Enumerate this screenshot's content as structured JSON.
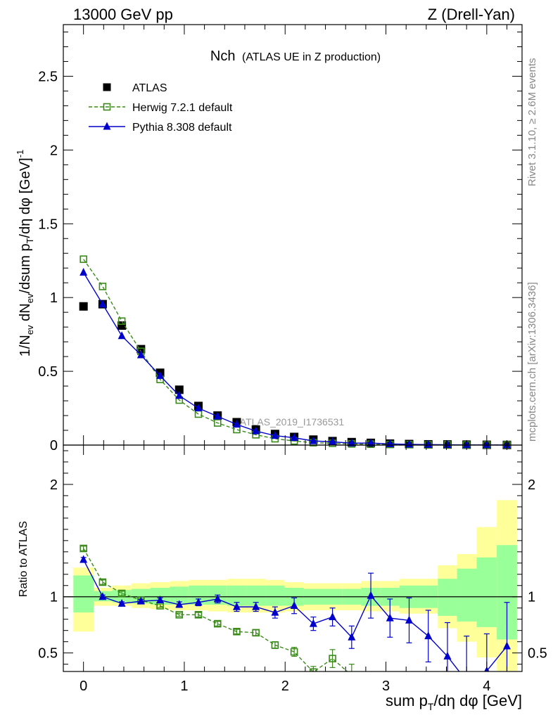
{
  "header": {
    "left": "13000 GeV pp",
    "right": "Z (Drell-Yan)"
  },
  "side_labels": {
    "rivet": "Rivet 3.1.10, ≥ 2.6M events",
    "source": "mcplots.cern.ch [arXiv:1306.3436]"
  },
  "colors": {
    "atlas": "#000000",
    "herwig": "#3a8a1a",
    "pythia": "#0000cc",
    "band_inner": "#99ff99",
    "band_outer": "#ffff99"
  },
  "chart_data": [
    {
      "type": "scatter",
      "panel": "main",
      "title_main": "Nch",
      "title_sub": "(ATLAS UE in Z production)",
      "watermark": "ATLAS_2019_I1736531",
      "ylabel": "1/N_ev dN_ev/dsum p_T/dη dφ [GeV]^-1",
      "xlim": [
        -0.2,
        4.35
      ],
      "ylim": [
        0,
        2.85
      ],
      "yticks": [
        0,
        0.5,
        1,
        1.5,
        2,
        2.5
      ],
      "ytick_labels": [
        "0",
        "0.5",
        "1",
        "1.5",
        "2",
        "2.5"
      ],
      "legend_position": "top-left",
      "x": [
        0.0,
        0.19,
        0.38,
        0.57,
        0.76,
        0.95,
        1.14,
        1.33,
        1.52,
        1.71,
        1.9,
        2.09,
        2.28,
        2.47,
        2.66,
        2.85,
        3.04,
        3.23,
        3.42,
        3.61,
        3.8,
        4.0,
        4.2
      ],
      "series": [
        {
          "name": "ATLAS",
          "marker": "square",
          "values": [
            0.94,
            0.955,
            0.81,
            0.65,
            0.49,
            0.375,
            0.265,
            0.2,
            0.155,
            0.105,
            0.075,
            0.055,
            0.037,
            0.027,
            0.02,
            0.015,
            0.01,
            0.007,
            0.005,
            0.004,
            0.003,
            0.002,
            0.001
          ]
        },
        {
          "name": "Herwig 7.2.1 default",
          "marker": "open-square",
          "dashed": true,
          "values": [
            1.26,
            1.075,
            0.84,
            0.635,
            0.445,
            0.305,
            0.21,
            0.15,
            0.105,
            0.07,
            0.043,
            0.028,
            0.016,
            0.012,
            0.008,
            0.006,
            0.004,
            0.003,
            0.002,
            0.002,
            0.001,
            0.001,
            0.001
          ]
        },
        {
          "name": "Pythia 8.308 default",
          "marker": "triangle",
          "values": [
            1.17,
            0.955,
            0.74,
            0.61,
            0.47,
            0.335,
            0.25,
            0.195,
            0.14,
            0.095,
            0.064,
            0.05,
            0.028,
            0.022,
            0.013,
            0.014,
            0.008,
            0.005,
            0.003,
            0.002,
            0.001,
            0.001,
            0.0005
          ]
        }
      ]
    },
    {
      "type": "line",
      "panel": "ratio",
      "ylabel": "Ratio to ATLAS",
      "xlabel": "sum p_T/dη dφ [GeV]",
      "xlim": [
        -0.2,
        4.35
      ],
      "ylim": [
        0.335,
        2.35
      ],
      "xticks": [
        0,
        1,
        2,
        3,
        4
      ],
      "xtick_labels": [
        "0",
        "1",
        "2",
        "3",
        "4"
      ],
      "yticks": [
        0.5,
        1,
        2
      ],
      "ytick_labels": [
        "0.5",
        "1",
        "2"
      ],
      "reference_line": 1,
      "bands": {
        "edges": [
          -0.1,
          0.1,
          0.285,
          0.475,
          0.665,
          0.855,
          1.045,
          1.235,
          1.425,
          1.615,
          1.805,
          1.995,
          2.185,
          2.375,
          2.565,
          2.755,
          2.945,
          3.135,
          3.325,
          3.515,
          3.705,
          3.9,
          4.1,
          4.3
        ],
        "inner_lo": [
          0.86,
          0.96,
          0.95,
          0.94,
          0.93,
          0.93,
          0.93,
          0.93,
          0.92,
          0.92,
          0.92,
          0.92,
          0.93,
          0.93,
          0.93,
          0.92,
          0.92,
          0.9,
          0.9,
          0.83,
          0.78,
          0.73,
          0.62
        ],
        "inner_hi": [
          1.19,
          1.05,
          1.06,
          1.07,
          1.08,
          1.09,
          1.1,
          1.1,
          1.1,
          1.1,
          1.1,
          1.08,
          1.07,
          1.07,
          1.07,
          1.08,
          1.08,
          1.1,
          1.1,
          1.16,
          1.25,
          1.35,
          1.46
        ],
        "outer_lo": [
          0.69,
          0.92,
          0.92,
          0.9,
          0.89,
          0.88,
          0.88,
          0.87,
          0.86,
          0.86,
          0.86,
          0.87,
          0.88,
          0.88,
          0.88,
          0.87,
          0.87,
          0.85,
          0.85,
          0.72,
          0.6,
          0.46,
          0.34
        ],
        "outer_hi": [
          1.26,
          1.08,
          1.1,
          1.12,
          1.13,
          1.14,
          1.15,
          1.15,
          1.16,
          1.16,
          1.15,
          1.13,
          1.12,
          1.12,
          1.12,
          1.14,
          1.14,
          1.16,
          1.16,
          1.28,
          1.38,
          1.62,
          1.86
        ]
      },
      "x": [
        0.0,
        0.19,
        0.38,
        0.57,
        0.76,
        0.95,
        1.14,
        1.33,
        1.52,
        1.71,
        1.9,
        2.09,
        2.28,
        2.47,
        2.66,
        2.85,
        3.04,
        3.23,
        3.42,
        3.61,
        3.8,
        4.0,
        4.2
      ],
      "series": [
        {
          "name": "Herwig 7.2.1 default",
          "marker": "open-square",
          "dashed": true,
          "values": [
            1.43,
            1.13,
            1.03,
            0.97,
            0.92,
            0.84,
            0.84,
            0.76,
            0.69,
            0.68,
            0.57,
            0.51,
            0.33,
            0.45,
            0.3,
            null,
            null,
            null,
            null,
            null,
            null,
            null,
            null
          ],
          "errors": [
            0.02,
            0.02,
            0.02,
            0.015,
            0.015,
            0.015,
            0.02,
            0.02,
            0.02,
            0.025,
            0.03,
            0.04,
            0.05,
            0.08,
            0.1,
            null,
            null,
            null,
            null,
            null,
            null,
            null,
            null
          ]
        },
        {
          "name": "Pythia 8.308 default",
          "marker": "triangle",
          "values": [
            1.33,
            1.0,
            0.94,
            0.96,
            0.97,
            0.93,
            0.95,
            0.98,
            0.91,
            0.91,
            0.86,
            0.92,
            0.76,
            0.82,
            0.64,
            1.01,
            0.81,
            0.79,
            0.65,
            0.47,
            0.25,
            0.34,
            0.56
          ],
          "errors": [
            0.02,
            0.015,
            0.015,
            0.015,
            0.02,
            0.025,
            0.03,
            0.035,
            0.04,
            0.04,
            0.05,
            0.07,
            0.06,
            0.08,
            0.1,
            0.2,
            0.17,
            0.2,
            0.23,
            0.3,
            0.4,
            0.33,
            0.39
          ]
        }
      ]
    }
  ]
}
